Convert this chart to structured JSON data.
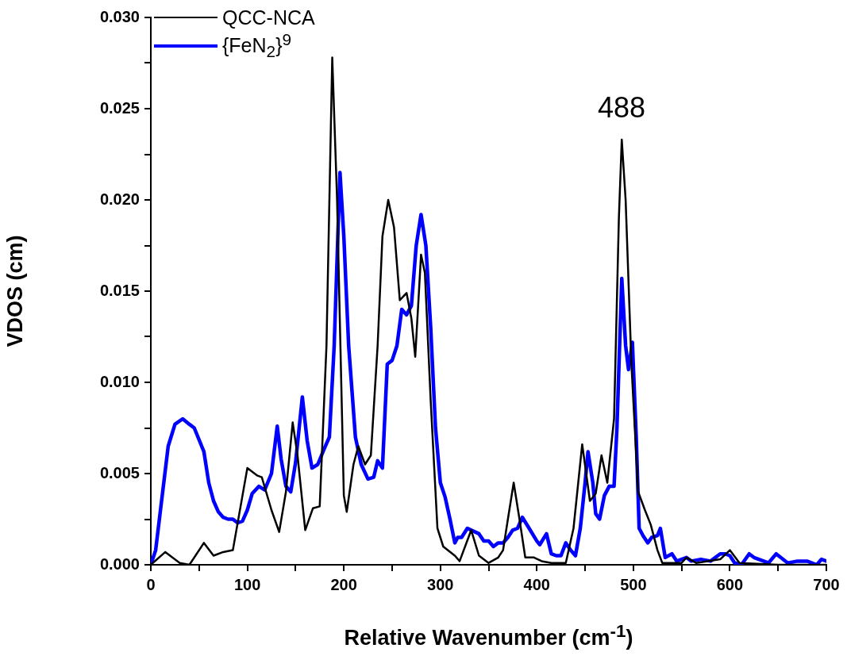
{
  "chart_data": {
    "type": "line",
    "xlabel": "Relative Wavenumber (cm$^{-1}$)",
    "ylabel": "VDOS (cm)",
    "xlim": [
      0,
      700
    ],
    "ylim": [
      0,
      0.03
    ],
    "xticks": [
      0,
      {
        "value": 50,
        "label": null
      },
      100,
      {
        "value": 150,
        "label": null
      },
      200,
      {
        "value": 250,
        "label": null
      },
      300,
      {
        "value": 350,
        "label": null
      },
      400,
      {
        "value": 450,
        "label": null
      },
      500,
      {
        "value": 550,
        "label": null
      },
      600,
      {
        "value": 650,
        "label": null
      },
      700
    ],
    "yticks": [
      {
        "value": 0,
        "label": "0.000"
      },
      {
        "value": 0.0025,
        "label": null
      },
      {
        "value": 0.005,
        "label": "0.005"
      },
      {
        "value": 0.0075,
        "label": null
      },
      {
        "value": 0.01,
        "label": "0.010"
      },
      {
        "value": 0.0125,
        "label": null
      },
      {
        "value": 0.015,
        "label": "0.015"
      },
      {
        "value": 0.0175,
        "label": null
      },
      {
        "value": 0.02,
        "label": "0.020"
      },
      {
        "value": 0.0225,
        "label": null
      },
      {
        "value": 0.025,
        "label": "0.025"
      },
      {
        "value": 0.0275,
        "label": null
      },
      {
        "value": 0.03,
        "label": "0.030"
      }
    ],
    "grid": false,
    "legend": "top left",
    "marker": "none",
    "line_style": "solid",
    "annotations": [
      "488"
    ],
    "series": [
      {
        "name": "QCC-NCA",
        "color": "#000000",
        "x": [
          0,
          15,
          30,
          40,
          55,
          65,
          75,
          85,
          100,
          110,
          115,
          125,
          133,
          140,
          147,
          152,
          160,
          168,
          175,
          182,
          188,
          193,
          200,
          203,
          210,
          215,
          222,
          228,
          235,
          240,
          246,
          252,
          258,
          265,
          270,
          274,
          280,
          284,
          290,
          297,
          303,
          315,
          320,
          332,
          340,
          350,
          360,
          365,
          370,
          376,
          382,
          388,
          397,
          405,
          415,
          430,
          438,
          447,
          455,
          461,
          467,
          473,
          480,
          485,
          488,
          492,
          498,
          505,
          512,
          518,
          525,
          530,
          550,
          555,
          565,
          590,
          600,
          610,
          650,
          700
        ],
        "values": [
          0,
          0.0007,
          0.0001,
          0,
          0.0012,
          0.0005,
          0.0007,
          0.0008,
          0.0053,
          0.0049,
          0.0048,
          0.003,
          0.0018,
          0.004,
          0.0078,
          0.006,
          0.0019,
          0.0031,
          0.0032,
          0.012,
          0.0278,
          0.02,
          0.0038,
          0.0029,
          0.0055,
          0.0065,
          0.0055,
          0.006,
          0.012,
          0.018,
          0.02,
          0.0185,
          0.0145,
          0.0149,
          0.0135,
          0.0114,
          0.017,
          0.016,
          0.009,
          0.002,
          0.001,
          0.0005,
          0.0002,
          0.0019,
          0.0005,
          0.0001,
          0.0004,
          0.0008,
          0.0025,
          0.0045,
          0.0025,
          0.0004,
          0.0004,
          0.0002,
          0.0001,
          0.0001,
          0.002,
          0.0066,
          0.0035,
          0.0039,
          0.006,
          0.0045,
          0.008,
          0.019,
          0.0233,
          0.02,
          0.011,
          0.004,
          0.003,
          0.0022,
          0.0008,
          0.0001,
          0.0001,
          0.0004,
          0.0001,
          0.0003,
          0.0008,
          0.0001,
          0,
          0
        ]
      },
      {
        "name": "{FeN$_{2}$}$^{9}$",
        "color": "#0000ff",
        "x": [
          0,
          5,
          10,
          18,
          25,
          33,
          40,
          45,
          55,
          60,
          65,
          70,
          75,
          80,
          85,
          90,
          95,
          100,
          105,
          112,
          118,
          125,
          131,
          135,
          140,
          145,
          150,
          157,
          162,
          167,
          173,
          180,
          185,
          190,
          196,
          200,
          205,
          212,
          218,
          225,
          231,
          235,
          240,
          245,
          250,
          255,
          260,
          265,
          270,
          275,
          280,
          285,
          290,
          295,
          300,
          305,
          310,
          315,
          318,
          322,
          328,
          340,
          345,
          350,
          355,
          360,
          365,
          370,
          375,
          380,
          385,
          392,
          400,
          403,
          410,
          415,
          420,
          425,
          430,
          435,
          440,
          445,
          450,
          453,
          458,
          461,
          465,
          470,
          475,
          480,
          483,
          488,
          492,
          495,
          499,
          503,
          506,
          510,
          515,
          519,
          525,
          528,
          533,
          540,
          545,
          555,
          560,
          570,
          580,
          590,
          595,
          600,
          605,
          612,
          620,
          625,
          630,
          640,
          648,
          660,
          670,
          680,
          690,
          695,
          700
        ],
        "values": [
          0,
          0.0008,
          0.003,
          0.0065,
          0.0077,
          0.008,
          0.0077,
          0.0075,
          0.0062,
          0.0045,
          0.0035,
          0.0029,
          0.0026,
          0.0025,
          0.0025,
          0.0023,
          0.0024,
          0.003,
          0.0039,
          0.0043,
          0.0041,
          0.005,
          0.0076,
          0.0058,
          0.0043,
          0.004,
          0.0056,
          0.0092,
          0.0068,
          0.0053,
          0.0055,
          0.0064,
          0.007,
          0.012,
          0.0215,
          0.018,
          0.012,
          0.007,
          0.0055,
          0.0047,
          0.0048,
          0.0057,
          0.0053,
          0.011,
          0.0112,
          0.012,
          0.014,
          0.0137,
          0.0142,
          0.0175,
          0.0192,
          0.0175,
          0.013,
          0.0075,
          0.0045,
          0.0037,
          0.0025,
          0.0012,
          0.0015,
          0.0015,
          0.002,
          0.0017,
          0.0013,
          0.0013,
          0.001,
          0.0012,
          0.0012,
          0.0015,
          0.0019,
          0.002,
          0.0026,
          0.002,
          0.0013,
          0.0011,
          0.0017,
          0.0006,
          0.0005,
          0.0005,
          0.0012,
          0.0008,
          0.0005,
          0.002,
          0.0045,
          0.0062,
          0.0045,
          0.0028,
          0.0025,
          0.0038,
          0.0043,
          0.0043,
          0.0075,
          0.0157,
          0.012,
          0.0107,
          0.0122,
          0.007,
          0.002,
          0.0016,
          0.0012,
          0.0015,
          0.0016,
          0.002,
          0.0004,
          0.0006,
          0.0002,
          0.0004,
          0.0002,
          0.0003,
          0.0002,
          0.0006,
          0.0006,
          0.0005,
          0.0001,
          0,
          0.0006,
          0.0004,
          0.0003,
          0.0001,
          0.0006,
          0.0001,
          0.0002,
          0.0002,
          0,
          0.0003,
          0.0002
        ]
      }
    ]
  }
}
